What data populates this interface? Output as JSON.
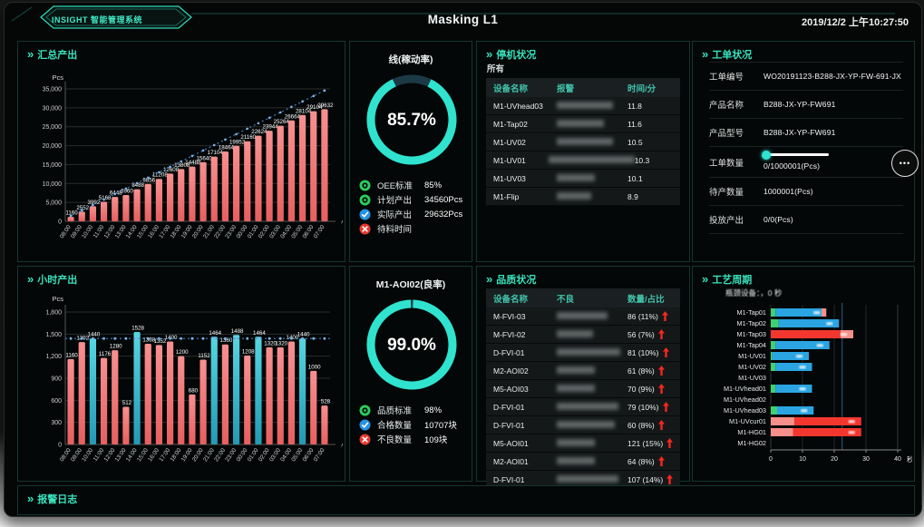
{
  "header": {
    "logo": "INSIGHT 智能管理系统",
    "title": "Masking L1",
    "datetime": "2019/12/2 上午10:27:50"
  },
  "icons": {
    "chevrons": "»",
    "dots": "•••"
  },
  "colors": {
    "accent": "#2fd9b9",
    "bar_red": "#f07575",
    "bar_teal": "#3ec6d8",
    "line_blue": "#3b82c4",
    "donut_teal": "#2fe3cf",
    "donut_gap": "#1c3a46",
    "arrow_red": "#f5271f"
  },
  "panels": {
    "summary": {
      "title": "汇总产出",
      "y_unit": "Pcs",
      "x_unit": "小时"
    },
    "oee": {
      "title": "线(稼动率)",
      "percent": "85.7%",
      "ring_pct": 85.7,
      "legend": [
        {
          "icon": "target-green-icon",
          "label": "OEE标准",
          "value": "85%"
        },
        {
          "icon": "target-green-icon",
          "label": "计划产出",
          "value": "34560Pcs"
        },
        {
          "icon": "check-blue-icon",
          "label": "实际产出",
          "value": "29632Pcs"
        },
        {
          "icon": "cross-red-icon",
          "label": "待料时间",
          "value": ""
        }
      ]
    },
    "downtime": {
      "title": "停机状况",
      "filter": "所有",
      "columns": [
        "设备名称",
        "报警",
        "时间/分"
      ],
      "rows": [
        {
          "device": "M1-UVhead03",
          "time": "11.8",
          "blur_w": 62
        },
        {
          "device": "M1-Tap02",
          "time": "11.6",
          "blur_w": 52
        },
        {
          "device": "M1-UV02",
          "time": "10.5",
          "blur_w": 62
        },
        {
          "device": "M1-UV01",
          "time": "10.3",
          "blur_w": 95
        },
        {
          "device": "M1-UV03",
          "time": "10.1",
          "blur_w": 42
        },
        {
          "device": "M1-Flip",
          "time": "8.9",
          "blur_w": 38
        }
      ]
    },
    "workorder": {
      "title": "工单状况",
      "rows": [
        {
          "label": "工单编号",
          "value": "WO20191123-B288-JX-YP-FW-691-JX"
        },
        {
          "label": "产品名称",
          "value": "B288-JX-YP-FW691"
        },
        {
          "label": "产品型号",
          "value": "B288-JX-YP-FW691"
        },
        {
          "label": "工单数量",
          "value": "0/1000001(Pcs)",
          "progress": 0
        },
        {
          "label": "待产数量",
          "value": "1000001(Pcs)"
        },
        {
          "label": "投放产出",
          "value": "0/0(Pcs)"
        }
      ]
    },
    "hourly": {
      "title": "小时产出",
      "y_unit": "Pcs",
      "x_unit": "小时"
    },
    "yield": {
      "title": "M1-AOI02(良率)",
      "percent": "99.0%",
      "ring_pct": 99.0,
      "legend": [
        {
          "icon": "target-green-icon",
          "label": "品质标准",
          "value": "98%"
        },
        {
          "icon": "check-blue-icon",
          "label": "合格数量",
          "value": "10707块"
        },
        {
          "icon": "cross-red-icon",
          "label": "不良数量",
          "value": "109块"
        }
      ]
    },
    "quality": {
      "title": "品质状况",
      "columns": [
        "设备名称",
        "不良",
        "数量/占比"
      ],
      "rows": [
        {
          "device": "M-FVI-03",
          "value": "86 (11%)",
          "blur_w": 56
        },
        {
          "device": "M-FVI-02",
          "value": "56 (7%)",
          "blur_w": 40
        },
        {
          "device": "D-FVI-01",
          "value": "81 (10%)",
          "blur_w": 70
        },
        {
          "device": "M2-AOI02",
          "value": "61 (8%)",
          "blur_w": 42
        },
        {
          "device": "M5-AOI03",
          "value": "70 (9%)",
          "blur_w": 42
        },
        {
          "device": "D-FVI-01",
          "value": "79 (10%)",
          "blur_w": 68
        },
        {
          "device": "D-FVI-01",
          "value": "60 (8%)",
          "blur_w": 64
        },
        {
          "device": "M5-AOI01",
          "value": "121 (15%)",
          "blur_w": 42
        },
        {
          "device": "M2-AOI01",
          "value": "64 (8%)",
          "blur_w": 42
        },
        {
          "device": "D-FVI-01",
          "value": "107 (14%)",
          "blur_w": 68
        }
      ]
    },
    "cycle": {
      "title": "工艺周期",
      "subtitle": "瓶颈设备：，0 秒",
      "x_unit": "秒"
    },
    "alarmlog": {
      "title": "报警日志"
    }
  },
  "chart_data": [
    {
      "id": "summary",
      "type": "bar",
      "title": "汇总产出(累计)",
      "ylabel": "Pcs",
      "xlabel": "小时",
      "ylim": [
        0,
        35000
      ],
      "yticks": [
        0,
        5000,
        10000,
        15000,
        20000,
        25000,
        30000,
        35000
      ],
      "categories": [
        "08:00",
        "09:00",
        "10:00",
        "11:00",
        "12:00",
        "13:00",
        "14:00",
        "15:00",
        "16:00",
        "17:00",
        "18:00",
        "19:00",
        "20:00",
        "21:00",
        "22:00",
        "23:00",
        "00:00",
        "01:00",
        "02:00",
        "03:00",
        "04:00",
        "05:00",
        "06:00",
        "07:00"
      ],
      "values": [
        1160,
        2552,
        3992,
        5168,
        6448,
        6960,
        8488,
        9856,
        11208,
        12608,
        13808,
        14488,
        15640,
        17104,
        18464,
        19952,
        21160,
        22624,
        23944,
        25264,
        26664,
        28104,
        29104,
        29632
      ],
      "line_series": {
        "name": "计划产出",
        "per_hour": 1440,
        "total": 34560,
        "style": "dotted"
      }
    },
    {
      "id": "hourly",
      "type": "bar",
      "title": "小时产出",
      "ylabel": "Pcs",
      "xlabel": "小时",
      "ylim": [
        0,
        1800
      ],
      "yticks": [
        0,
        300,
        600,
        900,
        1200,
        1500,
        1800
      ],
      "categories": [
        "08:00",
        "09:00",
        "10:00",
        "11:00",
        "12:00",
        "13:00",
        "14:00",
        "15:00",
        "16:00",
        "17:00",
        "18:00",
        "19:00",
        "20:00",
        "21:00",
        "22:00",
        "23:00",
        "00:00",
        "01:00",
        "02:00",
        "03:00",
        "04:00",
        "05:00",
        "06:00",
        "07:00"
      ],
      "values": [
        1160,
        1392,
        1440,
        1176,
        1280,
        512,
        1528,
        1368,
        1352,
        1400,
        1200,
        680,
        1152,
        1464,
        1360,
        1488,
        1208,
        1464,
        1320,
        1320,
        1400,
        1440,
        1000,
        528
      ],
      "threshold": 1440
    },
    {
      "id": "cycle",
      "type": "hbar-stacked",
      "title": "工艺周期",
      "xlabel": "秒",
      "xlim": [
        0,
        40
      ],
      "xticks": [
        0,
        10,
        20,
        30,
        40
      ],
      "refline": 22.5,
      "categories": [
        "M1-Tap01",
        "M1-Tap02",
        "M1-Tap03",
        "M1-Tap04",
        "M1-UV01",
        "M1-UV02",
        "M1-UV03",
        "M1-UVhead01",
        "M1-UVhead02",
        "M1-UVhead03",
        "M1-UVcur01",
        "M1-HG01",
        "M1-HG02"
      ],
      "series_colors": {
        "green": "#3ed071",
        "blue": "#2aa5e2",
        "red": "#f4372e",
        "lightred": "#f78f8a"
      },
      "bars": [
        [
          {
            "color": "green",
            "value": 1.5
          },
          {
            "color": "blue",
            "value": 14.5
          },
          {
            "color": "lightred",
            "value": 1.5
          }
        ],
        [
          {
            "color": "green",
            "value": 2.5
          },
          {
            "color": "blue",
            "value": 19
          }
        ],
        [
          {
            "color": "red",
            "value": 22
          },
          {
            "color": "lightred",
            "value": 4
          }
        ],
        [
          {
            "color": "green",
            "value": 1.5
          },
          {
            "color": "blue",
            "value": 17
          }
        ],
        [
          {
            "color": "green",
            "value": 0.5
          },
          {
            "color": "blue",
            "value": 11.5
          }
        ],
        [
          {
            "color": "green",
            "value": 1.5
          },
          {
            "color": "blue",
            "value": 11.5
          }
        ],
        [],
        [
          {
            "color": "green",
            "value": 1.5
          },
          {
            "color": "blue",
            "value": 11.5
          }
        ],
        [],
        [
          {
            "color": "green",
            "value": 2
          },
          {
            "color": "blue",
            "value": 11.5
          }
        ],
        [
          {
            "color": "lightred",
            "value": 7.5
          },
          {
            "color": "red",
            "value": 21
          }
        ],
        [
          {
            "color": "lightred",
            "value": 7
          },
          {
            "color": "red",
            "value": 21.5
          }
        ],
        []
      ]
    }
  ]
}
